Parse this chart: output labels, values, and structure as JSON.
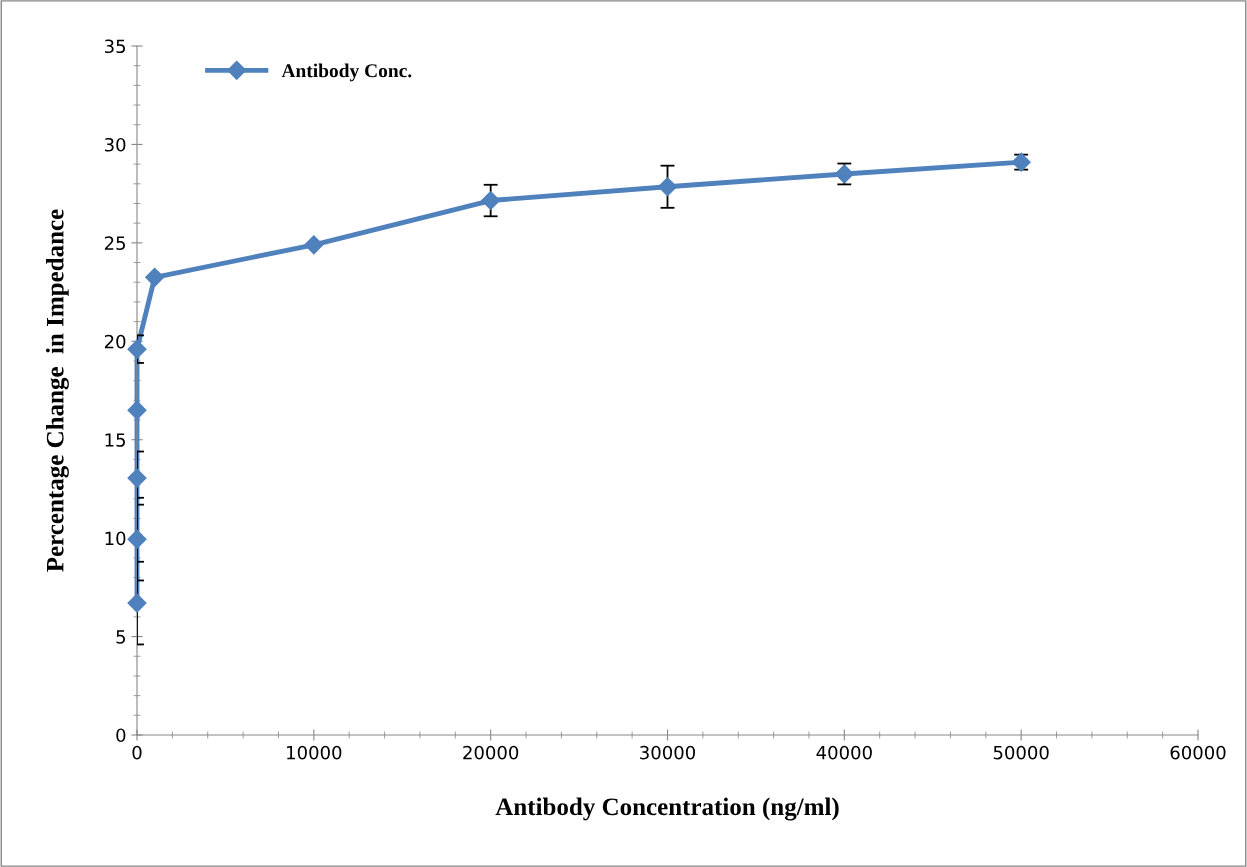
{
  "chart_data": {
    "type": "line",
    "xlabel": "Antibody Concentration (ng/ml)",
    "ylabel": "Percentage Change  in Impedance",
    "x": [
      0,
      0,
      0,
      0,
      0,
      1000,
      10000,
      20000,
      30000,
      40000,
      50000
    ],
    "series": [
      {
        "name": "Antibody Conc.",
        "color": "#4f81bd",
        "values": [
          6.7,
          9.95,
          13.05,
          16.5,
          19.6,
          23.25,
          24.9,
          27.15,
          27.85,
          28.5,
          29.1
        ],
        "errors": [
          2.1,
          2.1,
          1.35,
          null,
          0.7,
          null,
          null,
          0.8,
          1.07,
          0.53,
          0.38
        ]
      }
    ],
    "xlim": [
      0,
      60000
    ],
    "ylim": [
      0,
      35
    ],
    "xticks": [
      0,
      10000,
      20000,
      30000,
      40000,
      50000,
      60000
    ],
    "yticks": [
      0,
      5,
      10,
      15,
      20,
      25,
      30,
      35
    ],
    "marker": "diamond",
    "line_style": "solid",
    "legend": "top left",
    "grid": false
  }
}
